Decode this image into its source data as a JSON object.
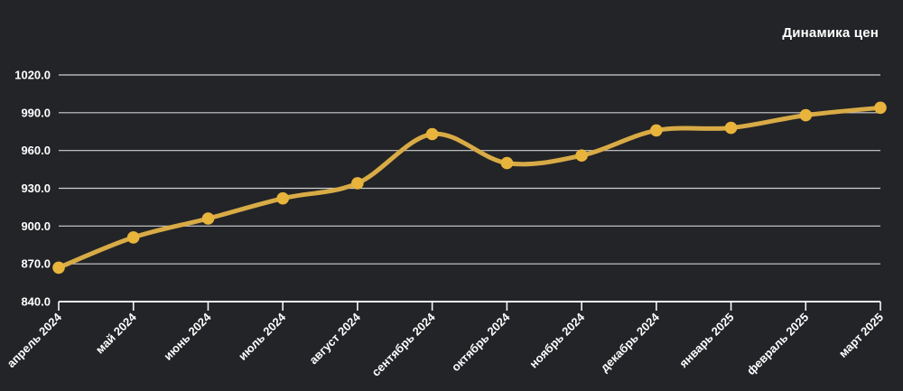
{
  "chart": {
    "title": "Динамика цен"
  },
  "chart_data": {
    "type": "line",
    "title": "Динамика цен",
    "xlabel": "",
    "ylabel": "",
    "categories": [
      "апрель 2024",
      "май 2024",
      "июнь 2024",
      "июль 2024",
      "август 2024",
      "сентябрь 2024",
      "октябрь 2024",
      "ноябрь 2024",
      "декабрь 2024",
      "январь 2025",
      "февраль 2025",
      "март 2025"
    ],
    "values": [
      867,
      891,
      906,
      922,
      934,
      973,
      950,
      956,
      976,
      978,
      988,
      994
    ],
    "ylim": [
      840,
      1020
    ],
    "y_ticks": [
      840,
      870,
      900,
      930,
      960,
      990,
      1020
    ],
    "y_tick_labels": [
      "840.0",
      "870.0",
      "900.0",
      "930.0",
      "960.0",
      "990.0",
      "1020.0"
    ],
    "x_label_rotation": -45,
    "grid": true,
    "legend": "none",
    "smooth": true,
    "marker": "circle",
    "colors": {
      "background": "#232427",
      "line": "#d8ab46",
      "marker": "#e8b43c",
      "grid": "#cfcfcf",
      "axis": "#f5f5f5",
      "text": "#ffffff"
    }
  }
}
